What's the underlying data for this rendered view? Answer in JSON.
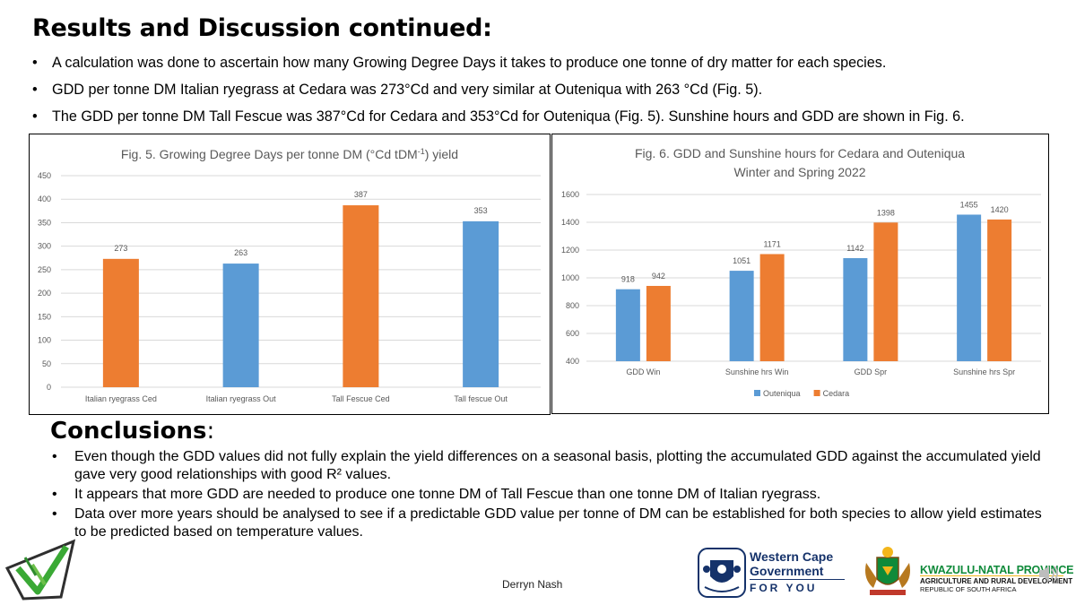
{
  "slide": {
    "title": "Results and Discussion continued:",
    "bullets": [
      "A calculation was done to ascertain how many Growing Degree Days it takes to produce one tonne of dry matter for each species.",
      "GDD per tonne DM Italian ryegrass at Cedara was 273°Cd and very similar at Outeniqua with 263 °Cd (Fig. 5).",
      "The GDD per tonne DM Tall Fescue was 387°Cd for Cedara and 353°Cd for Outeniqua (Fig. 5). Sunshine hours and GDD are shown in Fig. 6."
    ],
    "conclusions_title": "Conclusions",
    "conclusions_colon": ":",
    "conclusions": [
      "Even though the GDD values did not fully explain the yield differences on a seasonal basis, plotting the accumulated GDD against the accumulated yield gave very good relationships with good R² values.",
      "It appears that more GDD are needed to produce one tonne DM of Tall Fescue than one tonne DM of Italian ryegrass.",
      "Data over more years should be analysed to see if a predictable GDD value per tonne of DM can be established for both species to allow yield estimates to be predicted based on temperature values."
    ],
    "author": "Derryn Nash"
  },
  "logos": {
    "wc_line1": "Western Cape",
    "wc_line2": "Government",
    "wc_line3": "FOR YOU",
    "kzn_name": "KWAZULU-NATAL PROVINCE",
    "kzn_dept": "AGRICULTURE AND RURAL DEVELOPMENT",
    "kzn_rep": "REPUBLIC OF SOUTH AFRICA"
  },
  "colors": {
    "orange": "#ED7D31",
    "blue": "#5B9BD5",
    "grid": "#D9D9D9",
    "axis_text": "#595959",
    "title_text": "#595959"
  },
  "chart_data": [
    {
      "type": "bar",
      "title": "Fig. 5. Growing Degree Days per tonne DM (°Cd tDM",
      "title_sup": "-1",
      "title_end": ") yield",
      "categories": [
        "Italian ryegrass Ced",
        "Italian ryegrass Out",
        "Tall Fescue Ced",
        "Tall fescue Out"
      ],
      "values": [
        273,
        263,
        387,
        353
      ],
      "bar_colors": [
        "#ED7D31",
        "#5B9BD5",
        "#ED7D31",
        "#5B9BD5"
      ],
      "data_labels": [
        "273",
        "263",
        "387",
        "353"
      ],
      "ylim": [
        0,
        450
      ],
      "yticks": [
        0,
        50,
        100,
        150,
        200,
        250,
        300,
        350,
        400,
        450
      ],
      "ytick_labels": [
        "0",
        "50",
        "100",
        "150",
        "200",
        "250",
        "300",
        "350",
        "400",
        "450"
      ],
      "grid": true,
      "legend": "none"
    },
    {
      "type": "bar",
      "title_line1": "Fig. 6. GDD and Sunshine hours for Cedara and Outeniqua",
      "title_line2": "Winter and Spring 2022",
      "categories": [
        "GDD Win",
        "Sunshine hrs Win",
        "GDD Spr",
        "Sunshine hrs Spr"
      ],
      "series": [
        {
          "name": "Outeniqua",
          "color": "#5B9BD5",
          "values": [
            918,
            1051,
            1142,
            1455
          ],
          "labels": [
            "918",
            "1051",
            "1142",
            "1455"
          ]
        },
        {
          "name": "Cedara",
          "color": "#ED7D31",
          "values": [
            942,
            1171,
            1398,
            1420
          ],
          "labels": [
            "942",
            "1171",
            "1398",
            "1420"
          ]
        }
      ],
      "ylim": [
        400,
        1600
      ],
      "yticks": [
        400,
        600,
        800,
        1000,
        1200,
        1400,
        1600
      ],
      "ytick_labels": [
        "400",
        "600",
        "800",
        "1000",
        "1200",
        "1400",
        "1600"
      ],
      "grid": true,
      "legend": "bottom"
    }
  ]
}
